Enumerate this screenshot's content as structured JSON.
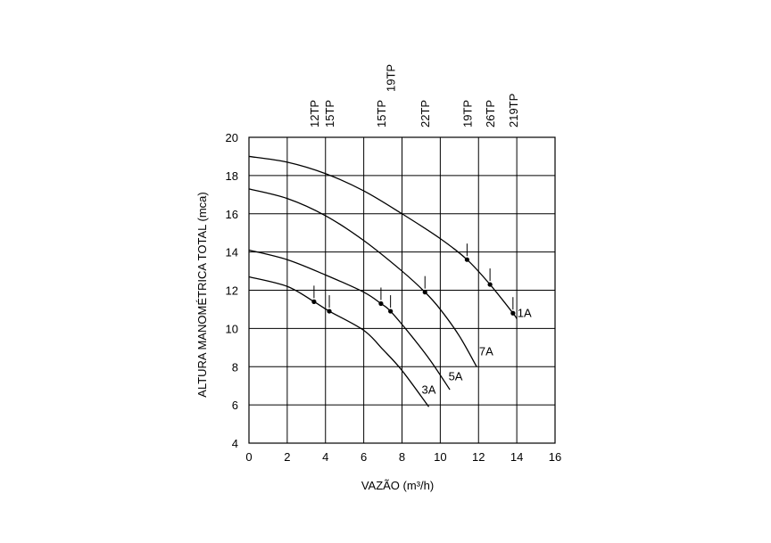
{
  "chart_data": {
    "type": "line",
    "xlabel": "VAZÃO (m³/h)",
    "ylabel": "ALTURA MANOMÉTRICA TOTAL (mca)",
    "xlim": [
      0,
      16
    ],
    "ylim": [
      4,
      20
    ],
    "x_ticks": [
      "0",
      "2",
      "4",
      "6",
      "8",
      "10",
      "12",
      "14",
      "16"
    ],
    "y_ticks": [
      "4",
      "6",
      "8",
      "10",
      "12",
      "14",
      "16",
      "18",
      "20"
    ],
    "grid": true,
    "series": [
      {
        "name": "1A",
        "points": [
          [
            0,
            19.0
          ],
          [
            2,
            18.7
          ],
          [
            4,
            18.1
          ],
          [
            6,
            17.2
          ],
          [
            8,
            16.0
          ],
          [
            10,
            14.7
          ],
          [
            11.4,
            13.6
          ],
          [
            12.6,
            12.3
          ],
          [
            13.8,
            10.8
          ],
          [
            14.0,
            10.5
          ]
        ]
      },
      {
        "name": "7A",
        "points": [
          [
            0,
            17.3
          ],
          [
            2,
            16.8
          ],
          [
            4,
            15.9
          ],
          [
            6,
            14.6
          ],
          [
            8,
            13.0
          ],
          [
            9.2,
            11.9
          ],
          [
            10,
            11.0
          ],
          [
            11.0,
            9.6
          ],
          [
            11.9,
            8.0
          ]
        ]
      },
      {
        "name": "5A",
        "points": [
          [
            0,
            14.1
          ],
          [
            2,
            13.6
          ],
          [
            4,
            12.8
          ],
          [
            6,
            11.9
          ],
          [
            6.9,
            11.3
          ],
          [
            7.4,
            10.9
          ],
          [
            8.5,
            9.6
          ],
          [
            9.5,
            8.3
          ],
          [
            10.5,
            6.8
          ]
        ]
      },
      {
        "name": "3A",
        "points": [
          [
            0,
            12.7
          ],
          [
            2,
            12.2
          ],
          [
            3.4,
            11.4
          ],
          [
            4.2,
            10.9
          ],
          [
            6,
            9.9
          ],
          [
            7,
            8.9
          ],
          [
            8,
            7.8
          ],
          [
            9.4,
            5.9
          ]
        ]
      }
    ],
    "markers": [
      {
        "series": "1A",
        "x": 11.4,
        "y": 13.6
      },
      {
        "series": "1A",
        "x": 12.6,
        "y": 12.3
      },
      {
        "series": "1A",
        "x": 13.8,
        "y": 10.8
      },
      {
        "series": "7A",
        "x": 9.2,
        "y": 11.9
      },
      {
        "series": "5A",
        "x": 6.9,
        "y": 11.3
      },
      {
        "series": "5A",
        "x": 7.4,
        "y": 10.9
      },
      {
        "series": "3A",
        "x": 3.4,
        "y": 11.4
      },
      {
        "series": "3A",
        "x": 4.2,
        "y": 10.9
      }
    ],
    "top_labels": [
      {
        "text": "12TP",
        "x": 3.4
      },
      {
        "text": "15TP",
        "x": 4.2
      },
      {
        "text": "15TP",
        "x": 6.9
      },
      {
        "text": "19TP",
        "x": 7.4
      },
      {
        "text": "22TP",
        "x": 9.2
      },
      {
        "text": "19TP",
        "x": 11.4
      },
      {
        "text": "26TP",
        "x": 12.6
      },
      {
        "text": "219TP",
        "x": 13.8
      }
    ],
    "curve_labels": [
      {
        "text": "1A",
        "x": 14.4,
        "y": 10.6
      },
      {
        "text": "7A",
        "x": 12.4,
        "y": 8.6
      },
      {
        "text": "5A",
        "x": 10.8,
        "y": 7.3
      },
      {
        "text": "3A",
        "x": 9.4,
        "y": 6.6
      }
    ]
  }
}
